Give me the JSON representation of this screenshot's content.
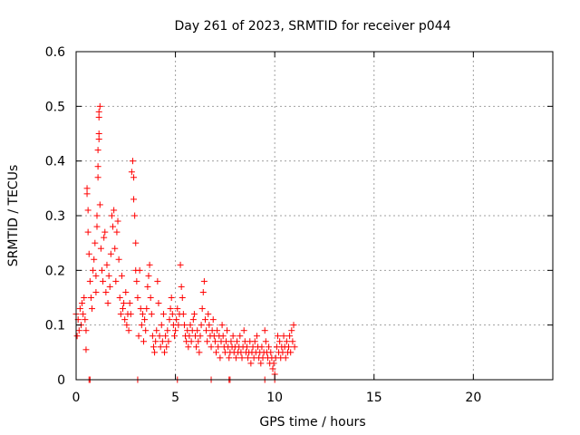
{
  "chart_data": {
    "type": "scatter",
    "title": "Day 261 of 2023, SRMTID for receiver p044",
    "xlabel": "GPS time / hours",
    "ylabel": "SRMTID / TECUs",
    "xlim": [
      0,
      24
    ],
    "ylim": [
      0,
      0.6
    ],
    "xticks": [
      "0",
      "5",
      "10",
      "15",
      "20"
    ],
    "xtick_values": [
      0,
      5,
      10,
      15,
      20
    ],
    "yticks": [
      "0",
      "0.1",
      "0.2",
      "0.3",
      "0.4",
      "0.5",
      "0.6"
    ],
    "ytick_values": [
      0,
      0.1,
      0.2,
      0.3,
      0.4,
      0.5,
      0.6
    ],
    "grid": true,
    "marker": "+",
    "colors": {
      "series": "#ff0000",
      "grid": "#a0a0a0",
      "axis": "#000000"
    },
    "series": [
      {
        "name": "SRMTID",
        "points": [
          [
            0.0,
            0.12
          ],
          [
            0.05,
            0.08
          ],
          [
            0.1,
            0.11
          ],
          [
            0.15,
            0.09
          ],
          [
            0.2,
            0.13
          ],
          [
            0.25,
            0.1
          ],
          [
            0.3,
            0.14
          ],
          [
            0.35,
            0.12
          ],
          [
            0.4,
            0.15
          ],
          [
            0.45,
            0.11
          ],
          [
            0.5,
            0.09
          ],
          [
            0.5,
            0.055
          ],
          [
            0.55,
            0.35
          ],
          [
            0.55,
            0.34
          ],
          [
            0.6,
            0.31
          ],
          [
            0.6,
            0.27
          ],
          [
            0.65,
            0.23
          ],
          [
            0.7,
            0.18
          ],
          [
            0.75,
            0.15
          ],
          [
            0.8,
            0.13
          ],
          [
            0.85,
            0.2
          ],
          [
            0.9,
            0.22
          ],
          [
            0.95,
            0.25
          ],
          [
            1.0,
            0.19
          ],
          [
            1.0,
            0.16
          ],
          [
            1.05,
            0.3
          ],
          [
            1.05,
            0.28
          ],
          [
            1.1,
            0.37
          ],
          [
            1.1,
            0.39
          ],
          [
            1.1,
            0.42
          ],
          [
            1.15,
            0.44
          ],
          [
            1.15,
            0.45
          ],
          [
            1.15,
            0.48
          ],
          [
            1.15,
            0.49
          ],
          [
            1.2,
            0.5
          ],
          [
            1.2,
            0.32
          ],
          [
            1.25,
            0.24
          ],
          [
            1.3,
            0.2
          ],
          [
            1.35,
            0.18
          ],
          [
            1.4,
            0.26
          ],
          [
            1.45,
            0.27
          ],
          [
            1.5,
            0.16
          ],
          [
            1.55,
            0.21
          ],
          [
            1.6,
            0.14
          ],
          [
            1.65,
            0.19
          ],
          [
            1.7,
            0.17
          ],
          [
            1.75,
            0.23
          ],
          [
            1.8,
            0.3
          ],
          [
            1.85,
            0.28
          ],
          [
            1.9,
            0.31
          ],
          [
            1.95,
            0.24
          ],
          [
            2.0,
            0.18
          ],
          [
            2.05,
            0.27
          ],
          [
            2.1,
            0.29
          ],
          [
            2.15,
            0.22
          ],
          [
            2.2,
            0.15
          ],
          [
            2.25,
            0.12
          ],
          [
            2.3,
            0.19
          ],
          [
            2.35,
            0.13
          ],
          [
            2.4,
            0.14
          ],
          [
            2.45,
            0.11
          ],
          [
            2.5,
            0.16
          ],
          [
            2.55,
            0.1
          ],
          [
            2.6,
            0.12
          ],
          [
            2.65,
            0.09
          ],
          [
            2.7,
            0.14
          ],
          [
            2.75,
            0.12
          ],
          [
            2.8,
            0.38
          ],
          [
            2.85,
            0.4
          ],
          [
            2.9,
            0.37
          ],
          [
            2.9,
            0.33
          ],
          [
            2.95,
            0.3
          ],
          [
            3.0,
            0.25
          ],
          [
            3.0,
            0.2
          ],
          [
            3.05,
            0.18
          ],
          [
            3.1,
            0.15
          ],
          [
            3.15,
            0.08
          ],
          [
            3.2,
            0.2
          ],
          [
            3.25,
            0.13
          ],
          [
            3.3,
            0.1
          ],
          [
            3.35,
            0.12
          ],
          [
            3.4,
            0.07
          ],
          [
            3.45,
            0.11
          ],
          [
            3.5,
            0.09
          ],
          [
            3.55,
            0.13
          ],
          [
            3.6,
            0.17
          ],
          [
            3.65,
            0.19
          ],
          [
            3.7,
            0.21
          ],
          [
            3.75,
            0.15
          ],
          [
            3.8,
            0.12
          ],
          [
            3.85,
            0.08
          ],
          [
            3.9,
            0.06
          ],
          [
            3.95,
            0.05
          ],
          [
            4.0,
            0.07
          ],
          [
            4.05,
            0.09
          ],
          [
            4.1,
            0.18
          ],
          [
            4.15,
            0.14
          ],
          [
            4.2,
            0.08
          ],
          [
            4.25,
            0.06
          ],
          [
            4.3,
            0.1
          ],
          [
            4.35,
            0.07
          ],
          [
            4.4,
            0.12
          ],
          [
            4.45,
            0.05
          ],
          [
            4.5,
            0.08
          ],
          [
            4.55,
            0.06
          ],
          [
            4.6,
            0.09
          ],
          [
            4.65,
            0.07
          ],
          [
            4.7,
            0.11
          ],
          [
            4.75,
            0.13
          ],
          [
            4.8,
            0.15
          ],
          [
            4.85,
            0.12
          ],
          [
            4.9,
            0.1
          ],
          [
            4.95,
            0.08
          ],
          [
            5.0,
            0.09
          ],
          [
            5.05,
            0.11
          ],
          [
            5.1,
            0.13
          ],
          [
            5.15,
            0.1
          ],
          [
            5.2,
            0.12
          ],
          [
            5.25,
            0.21
          ],
          [
            5.3,
            0.17
          ],
          [
            5.35,
            0.15
          ],
          [
            5.4,
            0.12
          ],
          [
            5.45,
            0.1
          ],
          [
            5.5,
            0.08
          ],
          [
            5.55,
            0.07
          ],
          [
            5.6,
            0.09
          ],
          [
            5.65,
            0.06
          ],
          [
            5.7,
            0.08
          ],
          [
            5.75,
            0.1
          ],
          [
            5.8,
            0.07
          ],
          [
            5.85,
            0.09
          ],
          [
            5.9,
            0.11
          ],
          [
            5.95,
            0.12
          ],
          [
            6.0,
            0.08
          ],
          [
            6.05,
            0.06
          ],
          [
            6.1,
            0.09
          ],
          [
            6.15,
            0.07
          ],
          [
            6.2,
            0.05
          ],
          [
            6.25,
            0.08
          ],
          [
            6.3,
            0.1
          ],
          [
            6.35,
            0.13
          ],
          [
            6.4,
            0.16
          ],
          [
            6.45,
            0.18
          ],
          [
            6.5,
            0.11
          ],
          [
            6.55,
            0.09
          ],
          [
            6.6,
            0.07
          ],
          [
            6.65,
            0.12
          ],
          [
            6.7,
            0.1
          ],
          [
            6.75,
            0.08
          ],
          [
            6.8,
            0.06
          ],
          [
            6.85,
            0.09
          ],
          [
            6.9,
            0.11
          ],
          [
            6.95,
            0.08
          ],
          [
            7.0,
            0.07
          ],
          [
            7.05,
            0.05
          ],
          [
            7.1,
            0.09
          ],
          [
            7.15,
            0.06
          ],
          [
            7.2,
            0.08
          ],
          [
            7.25,
            0.04
          ],
          [
            7.3,
            0.07
          ],
          [
            7.35,
            0.1
          ],
          [
            7.4,
            0.08
          ],
          [
            7.45,
            0.06
          ],
          [
            7.5,
            0.05
          ],
          [
            7.55,
            0.07
          ],
          [
            7.6,
            0.09
          ],
          [
            7.65,
            0.06
          ],
          [
            7.7,
            0.04
          ],
          [
            7.75,
            0.05
          ],
          [
            7.8,
            0.07
          ],
          [
            7.85,
            0.06
          ],
          [
            7.9,
            0.08
          ],
          [
            7.95,
            0.05
          ],
          [
            8.0,
            0.06
          ],
          [
            8.05,
            0.04
          ],
          [
            8.1,
            0.07
          ],
          [
            8.15,
            0.05
          ],
          [
            8.2,
            0.06
          ],
          [
            8.25,
            0.08
          ],
          [
            8.3,
            0.05
          ],
          [
            8.35,
            0.04
          ],
          [
            8.4,
            0.06
          ],
          [
            8.45,
            0.09
          ],
          [
            8.5,
            0.07
          ],
          [
            8.55,
            0.05
          ],
          [
            8.6,
            0.06
          ],
          [
            8.65,
            0.04
          ],
          [
            8.7,
            0.05
          ],
          [
            8.75,
            0.07
          ],
          [
            8.8,
            0.03
          ],
          [
            8.85,
            0.05
          ],
          [
            8.9,
            0.06
          ],
          [
            8.95,
            0.04
          ],
          [
            9.0,
            0.07
          ],
          [
            9.05,
            0.05
          ],
          [
            9.1,
            0.08
          ],
          [
            9.15,
            0.06
          ],
          [
            9.2,
            0.04
          ],
          [
            9.25,
            0.05
          ],
          [
            9.3,
            0.03
          ],
          [
            9.35,
            0.06
          ],
          [
            9.4,
            0.04
          ],
          [
            9.45,
            0.05
          ],
          [
            9.5,
            0.09
          ],
          [
            9.55,
            0.07
          ],
          [
            9.6,
            0.05
          ],
          [
            9.65,
            0.04
          ],
          [
            9.7,
            0.06
          ],
          [
            9.75,
            0.03
          ],
          [
            9.8,
            0.05
          ],
          [
            9.85,
            0.04
          ],
          [
            9.9,
            0.02
          ],
          [
            9.95,
            0.03
          ],
          [
            10.0,
            0.01
          ],
          [
            10.05,
            0.04
          ],
          [
            10.1,
            0.06
          ],
          [
            10.15,
            0.08
          ],
          [
            10.2,
            0.05
          ],
          [
            10.25,
            0.07
          ],
          [
            10.3,
            0.04
          ],
          [
            10.35,
            0.06
          ],
          [
            10.4,
            0.05
          ],
          [
            10.45,
            0.08
          ],
          [
            10.5,
            0.06
          ],
          [
            10.55,
            0.04
          ],
          [
            10.6,
            0.07
          ],
          [
            10.65,
            0.05
          ],
          [
            10.7,
            0.06
          ],
          [
            10.75,
            0.08
          ],
          [
            10.8,
            0.05
          ],
          [
            10.85,
            0.09
          ],
          [
            10.9,
            0.07
          ],
          [
            10.95,
            0.1
          ],
          [
            11.0,
            0.06
          ],
          [
            0.65,
            0.0
          ],
          [
            0.7,
            0.0
          ],
          [
            3.1,
            0.0
          ],
          [
            5.1,
            0.0
          ],
          [
            6.8,
            0.0
          ],
          [
            7.7,
            0.0
          ],
          [
            7.75,
            0.0
          ],
          [
            9.5,
            0.0
          ],
          [
            10.0,
            0.0
          ]
        ]
      }
    ]
  }
}
